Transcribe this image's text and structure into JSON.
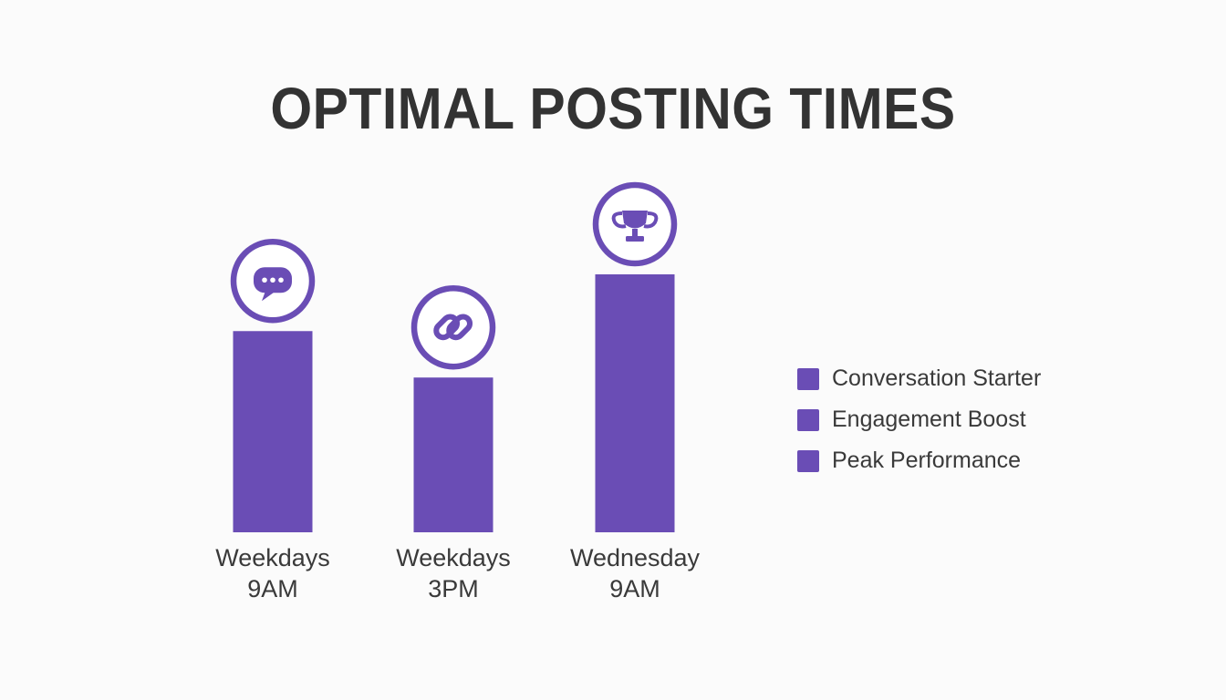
{
  "colors": {
    "bar": "#6a4db5",
    "title": "#333333",
    "label": "#3a3a3a",
    "background": "#fbfbfb"
  },
  "chart_data": {
    "type": "bar",
    "title": "OPTIMAL POSTING TIMES",
    "categories": [
      [
        "Weekdays",
        "9AM"
      ],
      [
        "Weekdays",
        "3PM"
      ],
      [
        "Wednesday",
        "9AM"
      ]
    ],
    "values": [
      78,
      60,
      100
    ],
    "value_unit": "relative engagement (%, no axis shown)",
    "icons": [
      "speech-bubble-icon",
      "link-icon",
      "trophy-icon"
    ],
    "legend": [
      "Conversation Starter",
      "Engagement Boost",
      "Peak Performance"
    ],
    "legend_position": "right",
    "grid": false,
    "ylim": [
      0,
      100
    ]
  }
}
